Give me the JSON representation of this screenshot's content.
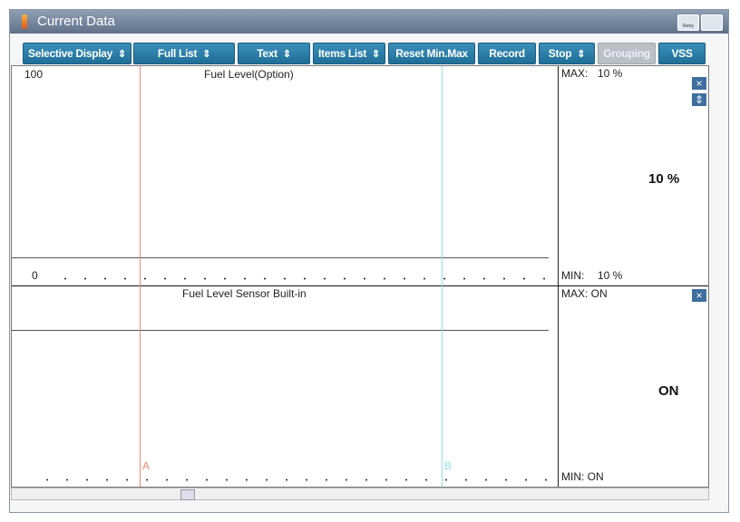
{
  "window": {
    "title": "Current Data",
    "retry_label": "Retry"
  },
  "toolbar": {
    "buttons": [
      "Selective Display",
      "Full List",
      "Text",
      "Items List",
      "Reset Min.Max",
      "Record",
      "Stop",
      "Grouping",
      "VSS"
    ]
  },
  "panels": [
    {
      "title": "Fuel Level(Option)",
      "scale_max": "100",
      "scale_min": "0",
      "max_label": "MAX:",
      "max_value": "10 %",
      "current": "10 %",
      "min_label": "MIN:",
      "min_value": "10 %"
    },
    {
      "title": "Fuel Level Sensor Built-in",
      "max_text": "MAX: ON",
      "current": "ON",
      "min_text": "MIN: ON"
    }
  ],
  "cursors": [
    "A",
    "B"
  ]
}
